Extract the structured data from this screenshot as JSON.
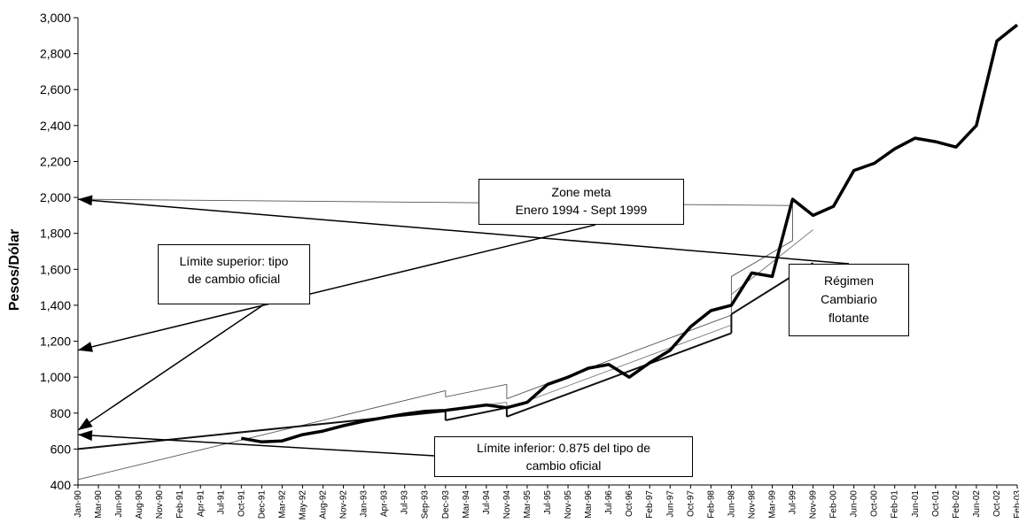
{
  "chart_data": {
    "type": "line",
    "title": "",
    "xlabel": "",
    "ylabel": "Pesos/Dólar",
    "ylim": [
      400,
      3000
    ],
    "yticks": [
      "400",
      "600",
      "800",
      "1,000",
      "1,200",
      "1,400",
      "1,600",
      "1,800",
      "2,000",
      "2,200",
      "2,400",
      "2,600",
      "2,800",
      "3,000"
    ],
    "xticks": [
      "Jan-90",
      "Mar-90",
      "Jun-90",
      "Aug-90",
      "Nov-90",
      "Feb-91",
      "Apr-91",
      "Jul-91",
      "Oct-91",
      "Dec-91",
      "Mar-92",
      "May-92",
      "Aug-92",
      "Nov-92",
      "Jan-93",
      "Apr-93",
      "Jul-93",
      "Sep-93",
      "Dec-93",
      "Mar-94",
      "Jul-94",
      "Nov-94",
      "Mar-95",
      "Jul-95",
      "Nov-95",
      "Mar-96",
      "Jul-96",
      "Oct-96",
      "Feb-97",
      "Jun-97",
      "Oct-97",
      "Feb-98",
      "Jun-98",
      "Nov-98",
      "Mar-99",
      "Jul-99",
      "Nov-99",
      "Feb-00",
      "Jun-00",
      "Oct-00",
      "Feb-01",
      "Jun-01",
      "Oct-01",
      "Feb-02",
      "Jun-02",
      "Oct-02",
      "Feb-03"
    ],
    "grid": false,
    "legend": "none",
    "series": [
      {
        "kind": "market_rate",
        "x": [
          "Oct-91",
          "Dec-91",
          "Mar-92",
          "May-92",
          "Aug-92",
          "Nov-92",
          "Jan-93",
          "Apr-93",
          "Jul-93",
          "Sep-93",
          "Dec-93",
          "Mar-94",
          "Jul-94",
          "Nov-94",
          "Mar-95",
          "Jul-95",
          "Nov-95",
          "Mar-96",
          "Jul-96",
          "Oct-96",
          "Feb-97",
          "Jun-97",
          "Oct-97",
          "Feb-98",
          "Jun-98",
          "Nov-98",
          "Mar-99",
          "Jul-99",
          "Nov-99",
          "Feb-00",
          "Jun-00",
          "Oct-00",
          "Feb-01",
          "Jun-01",
          "Oct-01",
          "Feb-02",
          "Jun-02",
          "Oct-02",
          "Feb-03"
        ],
        "y": [
          660,
          640,
          645,
          680,
          700,
          730,
          755,
          775,
          795,
          810,
          815,
          830,
          845,
          830,
          860,
          960,
          1000,
          1050,
          1070,
          1000,
          1080,
          1150,
          1280,
          1370,
          1400,
          1580,
          1560,
          1990,
          1900,
          1950,
          2150,
          2190,
          2270,
          2330,
          2310,
          2280,
          2400,
          2870,
          2960
        ]
      },
      {
        "kind": "upper_band",
        "segments": [
          {
            "x": [
              "Jan-90",
              "Dec-93"
            ],
            "y": [
              430,
              925
            ]
          },
          {
            "x": [
              "Dec-93",
              "Nov-94"
            ],
            "y": [
              890,
              960
            ]
          },
          {
            "x": [
              "Nov-94",
              "Jun-98"
            ],
            "y": [
              880,
              1345
            ]
          },
          {
            "x": [
              "Jun-98",
              "Jul-99"
            ],
            "y": [
              1560,
              1760
            ]
          },
          {
            "x": [
              "Jul-99",
              "Aug-99"
            ],
            "y": [
              1955,
              1990
            ]
          }
        ]
      },
      {
        "kind": "central_rate",
        "segments": [
          {
            "x": [
              "Dec-93",
              "Nov-94"
            ],
            "y": [
              820,
              860
            ]
          },
          {
            "x": [
              "Nov-94",
              "Jun-98"
            ],
            "y": [
              825,
              1290
            ]
          },
          {
            "x": [
              "Jun-98",
              "Nov-99"
            ],
            "y": [
              1460,
              1820
            ]
          }
        ]
      },
      {
        "kind": "lower_band",
        "segments": [
          {
            "x": [
              "Nov-91",
              "Dec-93"
            ],
            "y": [
              600,
              810
            ]
          },
          {
            "x": [
              "Dec-93",
              "Nov-94"
            ],
            "y": [
              760,
              830
            ]
          },
          {
            "x": [
              "Nov-94",
              "Jun-98"
            ],
            "y": [
              780,
              1245
            ]
          },
          {
            "x": [
              "Jun-98",
              "Nov-99"
            ],
            "y": [
              1350,
              1635
            ]
          }
        ]
      }
    ],
    "annotations": [
      {
        "id": "upper",
        "lines": [
          "Límite superior: tipo",
          "de cambio oficial"
        ],
        "arrow_to": {
          "x": "Jan-92",
          "y": 705
        }
      },
      {
        "id": "zone",
        "lines": [
          "Zone meta",
          "Enero 1994 - Sept 1999"
        ],
        "arrow_to": {
          "x": "Jan-97",
          "y": 1150
        }
      },
      {
        "id": "lower",
        "lines": [
          "Límite inferior:  0.875 del tipo de",
          "cambio oficial"
        ],
        "arrow_to": {
          "x": "Oct-92",
          "y": 680
        }
      },
      {
        "id": "floating",
        "lines": [
          "Régimen",
          "Cambiario",
          "flotante"
        ],
        "arrow_to": {
          "x": "Mar-00",
          "y": 1990
        }
      }
    ]
  }
}
